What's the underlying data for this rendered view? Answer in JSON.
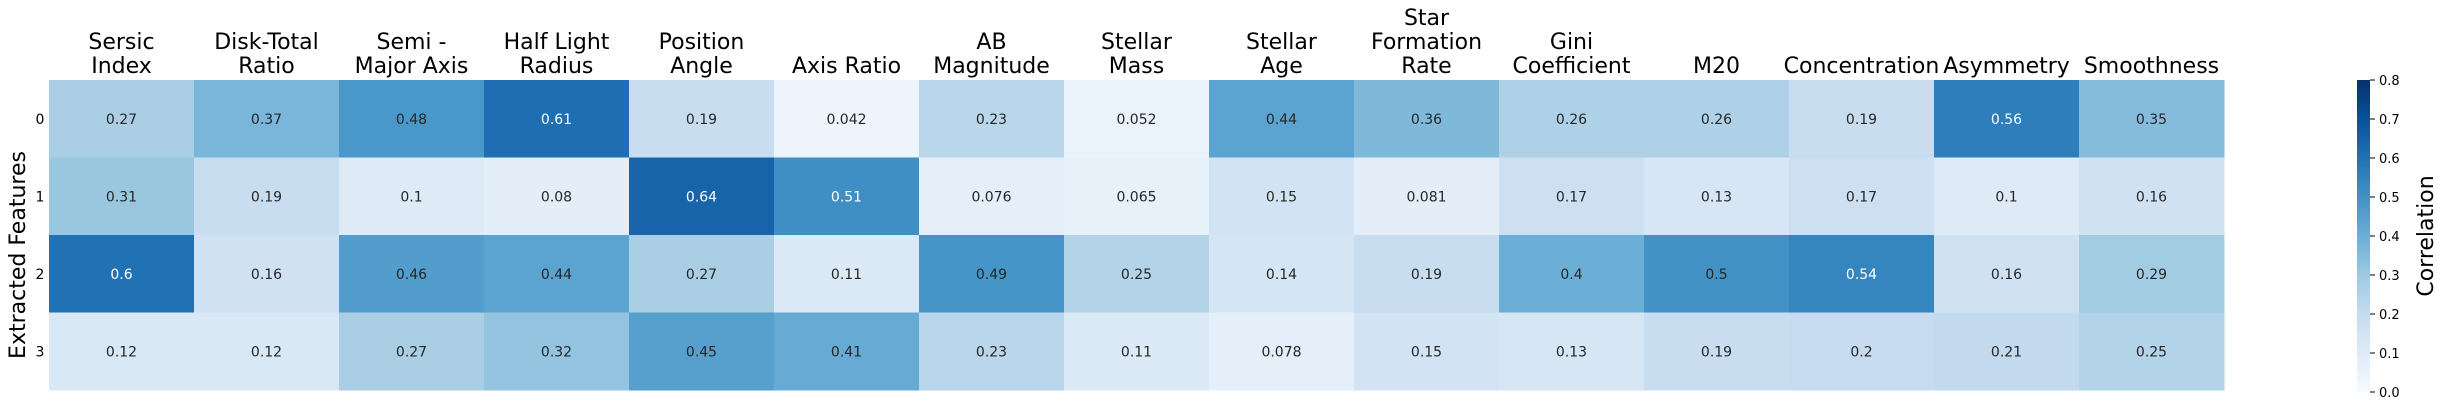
{
  "chart_data": {
    "type": "heatmap",
    "columns": [
      "Sersic\nIndex",
      "Disk-Total\nRatio",
      "Semi -\nMajor Axis",
      "Half Light\nRadius",
      "Position\nAngle",
      "Axis Ratio",
      "AB\nMagnitude",
      "Stellar\nMass",
      "Stellar\nAge",
      "Star\nFormation\nRate",
      "Gini\nCoefficient",
      "M20",
      "Concentration",
      "Asymmetry",
      "Smoothness"
    ],
    "rows": [
      "0",
      "1",
      "2",
      "3"
    ],
    "values": [
      [
        0.27,
        0.37,
        0.48,
        0.61,
        0.19,
        0.042,
        0.23,
        0.052,
        0.44,
        0.36,
        0.26,
        0.26,
        0.19,
        0.56,
        0.35
      ],
      [
        0.31,
        0.19,
        0.1,
        0.08,
        0.64,
        0.51,
        0.076,
        0.065,
        0.15,
        0.081,
        0.17,
        0.13,
        0.17,
        0.1,
        0.16
      ],
      [
        0.6,
        0.16,
        0.46,
        0.44,
        0.27,
        0.11,
        0.49,
        0.25,
        0.14,
        0.19,
        0.4,
        0.5,
        0.54,
        0.16,
        0.29
      ],
      [
        0.12,
        0.12,
        0.27,
        0.32,
        0.45,
        0.41,
        0.23,
        0.11,
        0.078,
        0.15,
        0.13,
        0.19,
        0.2,
        0.21,
        0.25
      ]
    ],
    "ylabel": "Extracted Features",
    "colorbar_label": "Correlation",
    "colorbar_range": [
      0.0,
      0.8
    ],
    "colorbar_ticks": [
      "0.0",
      "0.1",
      "0.2",
      "0.3",
      "0.4",
      "0.5",
      "0.6",
      "0.7",
      "0.8"
    ],
    "colormap": "Blues",
    "colors": {
      "low": "#f7fbff",
      "high": "#08306b",
      "dark_text": "#262626",
      "light_text": "#ffffff"
    }
  }
}
